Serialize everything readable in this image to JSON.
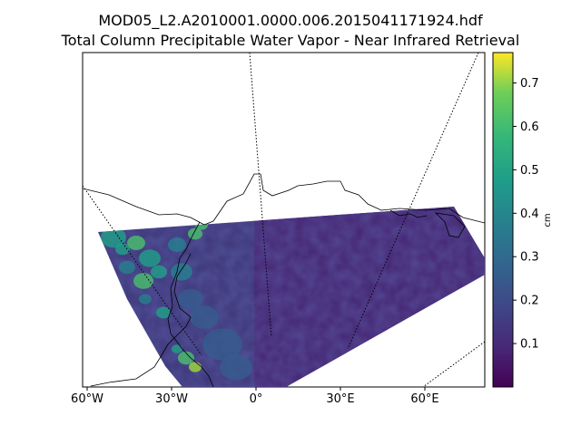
{
  "figure": {
    "title_line1": "MOD05_L2.A2010001.0000.006.2015041171924.hdf",
    "title_line2": "Total Column Precipitable Water Vapor - Near Infrared Retrieval"
  },
  "chart_data": {
    "type": "heatmap",
    "title": "MOD05_L2.A2010001.0000.006.2015041171924.hdf",
    "subtitle": "Total Column Precipitable Water Vapor - Near Infrared Retrieval",
    "projection": "map (longitude / latitude)",
    "x_ticks": [
      {
        "lon": -60,
        "label": "60°W"
      },
      {
        "lon": -30,
        "label": "30°W"
      },
      {
        "lon": 0,
        "label": "0°"
      },
      {
        "lon": 30,
        "label": "30°E"
      },
      {
        "lon": 60,
        "label": "60°E"
      }
    ],
    "colorbar": {
      "colormap": "viridis",
      "unit": "cm",
      "range": [
        0.0,
        0.77
      ],
      "ticks": [
        0.1,
        0.2,
        0.3,
        0.4,
        0.5,
        0.6,
        0.7
      ],
      "colors": [
        "#440154",
        "#3b528b",
        "#21918c",
        "#5ec962",
        "#fde725"
      ]
    },
    "swath_values": {
      "typical_range": [
        0.05,
        0.25
      ],
      "maximum_observed": 0.7,
      "notes_regions": [
        {
          "region": "western edge of swath",
          "value_range": [
            0.4,
            0.6
          ]
        },
        {
          "region": "southwest near coast",
          "value_range": [
            0.5,
            0.7
          ]
        },
        {
          "region": "central/eastern swath",
          "value_range": [
            0.05,
            0.2
          ]
        }
      ]
    },
    "grid": "dotted meridian/parallel lines",
    "coastlines": true
  }
}
